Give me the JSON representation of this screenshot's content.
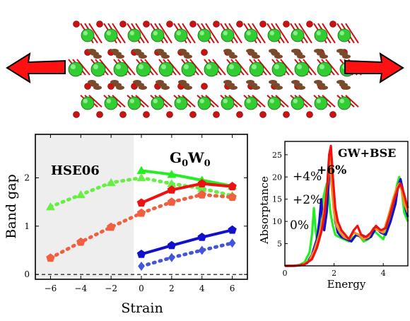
{
  "colors": {
    "green": "#22ee22",
    "green_dotted": "#66ee44",
    "red": "#ee1111",
    "red_dotted": "#f06040",
    "blue": "#1111cc",
    "blue_dotted": "#4455dd",
    "orange": "#f09020",
    "shade": "#eeeeee",
    "atom_green": "#33cc33",
    "atom_red": "#cc1111",
    "atom_brown": "#7a4a2a",
    "arrow_red": "#ff1111"
  },
  "chart_data": [
    {
      "type": "line",
      "xlabel": "Strain",
      "ylabel": "Band gap",
      "xlim": [
        -7,
        7
      ],
      "ylim": [
        -0.1,
        2.9
      ],
      "x_ticks": [
        "−6",
        "−4",
        "−2",
        "0",
        "2",
        "4",
        "6"
      ],
      "y_ticks": [
        "0",
        "1",
        "2"
      ],
      "grid": false,
      "shaded_region": {
        "x_from": -7,
        "x_to": -0.5,
        "label": "HSE06"
      },
      "annotations": {
        "hse": "HSE06",
        "gw_main": "G",
        "gw_sub1": "0",
        "gw_mid": "W",
        "gw_sub2": "0"
      },
      "reference_line": {
        "y": 0,
        "style": "dashed"
      },
      "series": [
        {
          "key": "green_solid",
          "x": [
            0,
            2,
            4,
            6
          ],
          "y": [
            2.15,
            2.07,
            1.95,
            1.83
          ],
          "marker": "triangle",
          "dashed": false
        },
        {
          "key": "green_dotted",
          "x": [
            -6,
            -4,
            -2,
            0,
            2,
            4,
            6
          ],
          "y": [
            1.4,
            1.65,
            1.9,
            2.0,
            1.88,
            1.78,
            1.63
          ],
          "marker": "triangle",
          "dashed": true
        },
        {
          "key": "red_solid",
          "x": [
            0,
            2,
            4,
            6
          ],
          "y": [
            1.48,
            1.75,
            1.88,
            1.82
          ],
          "marker": "pentagon",
          "dashed": false
        },
        {
          "key": "red_dotted",
          "x": [
            -6,
            -4,
            -2,
            0,
            2,
            4,
            6
          ],
          "y": [
            0.34,
            0.67,
            0.98,
            1.27,
            1.5,
            1.65,
            1.6
          ],
          "marker": "pentagon",
          "dashed": true
        },
        {
          "key": "blue_solid",
          "x": [
            0,
            2,
            4,
            6
          ],
          "y": [
            0.42,
            0.6,
            0.77,
            0.92
          ],
          "marker": "pentagon",
          "dashed": false
        },
        {
          "key": "blue_dotted",
          "x": [
            0,
            2,
            4,
            6
          ],
          "y": [
            0.17,
            0.35,
            0.5,
            0.65
          ],
          "marker": "diamond",
          "dashed": true
        }
      ]
    },
    {
      "type": "line",
      "xlabel": "Energy",
      "ylabel": "Absorptance",
      "xlim": [
        0,
        5
      ],
      "ylim": [
        0,
        28
      ],
      "x_ticks": [
        "0",
        "2",
        "4"
      ],
      "y_ticks": [
        "5",
        "10",
        "15",
        "20",
        "25"
      ],
      "grid": false,
      "title": "GW+BSE",
      "series": [
        {
          "name": "0%",
          "key": "green",
          "x": [
            0,
            0.3,
            0.6,
            0.8,
            1.0,
            1.1,
            1.18,
            1.25,
            1.3,
            1.4,
            1.55,
            1.7,
            1.78,
            1.85,
            1.95,
            2.05,
            2.2,
            2.4,
            2.6,
            2.8,
            3.0,
            3.2,
            3.4,
            3.6,
            3.8,
            4.0,
            4.2,
            4.4,
            4.55,
            4.65,
            4.75,
            4.85,
            5.0
          ],
          "y": [
            0,
            0,
            0.2,
            0.8,
            3,
            7,
            13,
            8,
            6,
            9,
            15,
            18.5,
            16,
            12,
            9,
            7,
            6.5,
            6,
            5.5,
            6.5,
            7,
            5.5,
            6,
            8,
            7,
            6,
            9,
            13,
            18,
            20,
            17,
            12,
            10
          ]
        },
        {
          "name": "+2%",
          "key": "blue",
          "x": [
            0,
            0.3,
            0.6,
            0.9,
            1.1,
            1.3,
            1.4,
            1.48,
            1.55,
            1.6,
            1.7,
            1.8,
            1.88,
            1.95,
            2.05,
            2.15,
            2.3,
            2.5,
            2.7,
            2.9,
            3.1,
            3.3,
            3.5,
            3.7,
            3.9,
            4.1,
            4.3,
            4.5,
            4.6,
            4.7,
            4.8,
            4.9,
            5.0
          ],
          "y": [
            0,
            0,
            0.1,
            0.6,
            2.5,
            6,
            10,
            15,
            9,
            8,
            12,
            20,
            21,
            16,
            10,
            7.5,
            6.5,
            6,
            5.5,
            7,
            6.5,
            6,
            6.5,
            8.5,
            7.5,
            7,
            10,
            14,
            18,
            19.5,
            17,
            13,
            11
          ]
        },
        {
          "name": "+4%",
          "key": "orange",
          "x": [
            0,
            0.4,
            0.7,
            1.0,
            1.2,
            1.4,
            1.55,
            1.65,
            1.75,
            1.82,
            1.9,
            2.0,
            2.1,
            2.25,
            2.4,
            2.6,
            2.8,
            3.0,
            3.2,
            3.4,
            3.6,
            3.8,
            4.0,
            4.2,
            4.4,
            4.55,
            4.65,
            4.75,
            4.85,
            5.0
          ],
          "y": [
            0,
            0,
            0.2,
            1.2,
            3.5,
            7,
            11,
            15,
            19,
            25,
            18,
            12,
            9,
            7.5,
            6.5,
            6,
            7.5,
            7,
            6,
            6.5,
            8.5,
            8,
            7.5,
            11,
            15,
            17.5,
            18.5,
            17,
            14,
            12
          ]
        },
        {
          "name": "+6%",
          "key": "red",
          "x": [
            0,
            0.4,
            0.8,
            1.1,
            1.3,
            1.5,
            1.62,
            1.72,
            1.8,
            1.87,
            1.95,
            2.05,
            2.15,
            2.3,
            2.45,
            2.6,
            2.8,
            2.95,
            3.1,
            3.3,
            3.5,
            3.7,
            3.9,
            4.1,
            4.3,
            4.45,
            4.6,
            4.7,
            4.8,
            4.9,
            5.0
          ],
          "y": [
            0,
            0,
            0.3,
            1.5,
            4,
            8,
            12,
            18,
            25,
            27,
            20,
            13,
            10,
            8,
            7,
            6,
            8,
            9,
            7,
            6.5,
            7.5,
            9,
            8,
            8.5,
            12,
            15,
            17.5,
            18.5,
            17,
            15,
            13
          ]
        }
      ]
    }
  ]
}
